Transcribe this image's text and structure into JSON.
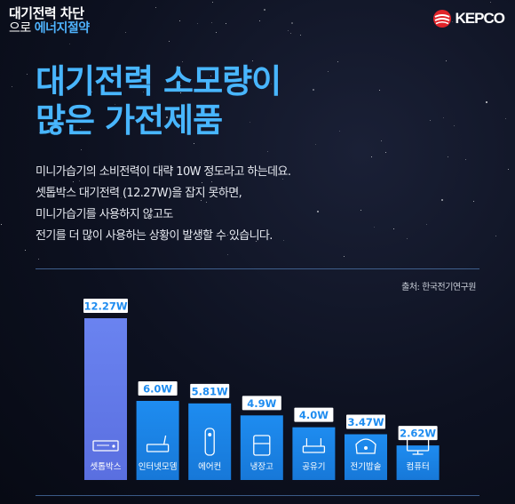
{
  "header": {
    "line1": "대기전력 차단",
    "line2_a": "으로 ",
    "line2_b": "에너지절약"
  },
  "logo": {
    "text": "KEPCO"
  },
  "title": {
    "line1": "대기전력 소모량이",
    "line2": "많은 가전제품"
  },
  "description": [
    "미니가습기의 소비전력이 대략 10W 정도라고 하는데요.",
    "셋톱박스 대기전력 (12.27W)을 잡지 못하면,",
    "미니가습기를 사용하지 않고도",
    "전기를 더 많이 사용하는 상황이 발생할 수 있습니다."
  ],
  "source": "출처: 한국전기연구원",
  "colors": {
    "accent": "#48b6ff",
    "bar_tall": "#6a83f0",
    "bar": "#1e8cf0",
    "label_bg": "#ffffff",
    "label_text": "#1e8cf0",
    "background": "#0b0f1c"
  },
  "chart_data": {
    "type": "bar",
    "categories": [
      "셋톱박스",
      "인터넷모뎀",
      "에어컨",
      "냉장고",
      "공유기",
      "전기밥솥",
      "컴퓨터"
    ],
    "values": [
      12.27,
      6.0,
      5.81,
      4.9,
      4.0,
      3.47,
      2.62
    ],
    "value_labels": [
      "12.27W",
      "6.0W",
      "5.81W",
      "4.9W",
      "4.0W",
      "3.47W",
      "2.62W"
    ],
    "icons": [
      "settop-box-icon",
      "modem-icon",
      "aircon-remote-icon",
      "refrigerator-icon",
      "router-icon",
      "rice-cooker-icon",
      "computer-icon"
    ],
    "ylim": [
      0,
      12.27
    ],
    "unit": "W",
    "grid": false
  }
}
